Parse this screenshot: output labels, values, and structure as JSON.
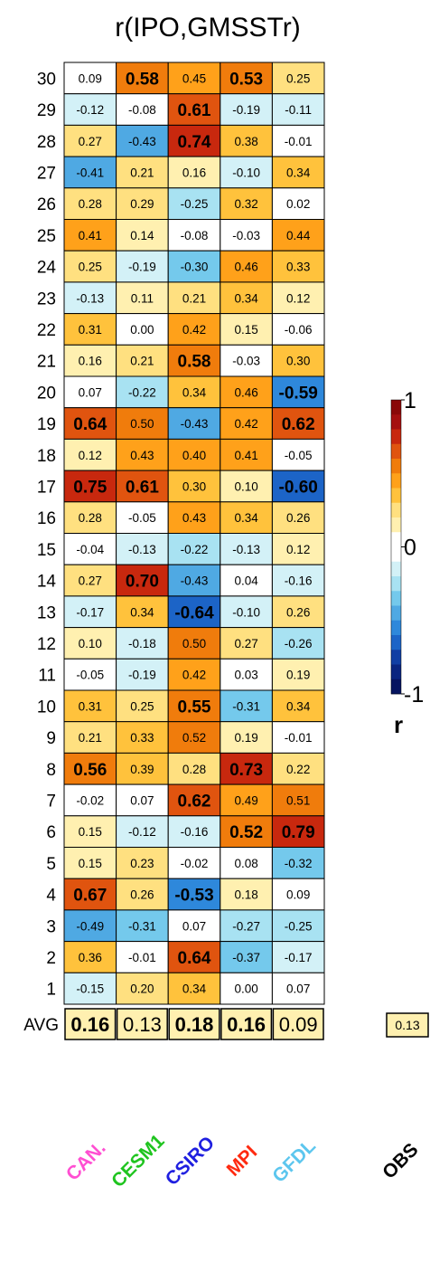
{
  "chart_data": {
    "type": "heatmap",
    "title": "r(IPO,GMSSTr)",
    "columns": [
      {
        "name": "CAN.",
        "color": "#ff4fd2"
      },
      {
        "name": "CESM1",
        "color": "#1fc41f"
      },
      {
        "name": "CSIRO",
        "color": "#1f1fe0"
      },
      {
        "name": "MPI",
        "color": "#ff2a10"
      },
      {
        "name": "GFDL",
        "color": "#5cc6ee"
      }
    ],
    "rows": [
      {
        "label": "30",
        "values": [
          0.09,
          0.58,
          0.45,
          0.53,
          0.25
        ],
        "bold": [
          false,
          true,
          false,
          true,
          false
        ]
      },
      {
        "label": "29",
        "values": [
          -0.12,
          -0.08,
          0.61,
          -0.19,
          -0.11
        ],
        "bold": [
          false,
          false,
          true,
          false,
          false
        ]
      },
      {
        "label": "28",
        "values": [
          0.27,
          -0.43,
          0.74,
          0.38,
          -0.01
        ],
        "bold": [
          false,
          false,
          true,
          false,
          false
        ]
      },
      {
        "label": "27",
        "values": [
          -0.41,
          0.21,
          0.16,
          -0.1,
          0.34
        ],
        "bold": [
          false,
          false,
          false,
          false,
          false
        ]
      },
      {
        "label": "26",
        "values": [
          0.28,
          0.29,
          -0.25,
          0.32,
          0.02
        ],
        "bold": [
          false,
          false,
          false,
          false,
          false
        ]
      },
      {
        "label": "25",
        "values": [
          0.41,
          0.14,
          -0.08,
          -0.03,
          0.44
        ],
        "bold": [
          false,
          false,
          false,
          false,
          false
        ]
      },
      {
        "label": "24",
        "values": [
          0.25,
          -0.19,
          -0.3,
          0.46,
          0.33
        ],
        "bold": [
          false,
          false,
          false,
          false,
          false
        ]
      },
      {
        "label": "23",
        "values": [
          -0.13,
          0.11,
          0.21,
          0.34,
          0.12
        ],
        "bold": [
          false,
          false,
          false,
          false,
          false
        ]
      },
      {
        "label": "22",
        "values": [
          0.31,
          0.0,
          0.42,
          0.15,
          -0.06
        ],
        "bold": [
          false,
          false,
          false,
          false,
          false
        ]
      },
      {
        "label": "21",
        "values": [
          0.16,
          0.21,
          0.58,
          -0.03,
          0.3
        ],
        "bold": [
          false,
          false,
          true,
          false,
          false
        ]
      },
      {
        "label": "20",
        "values": [
          0.07,
          -0.22,
          0.34,
          0.46,
          -0.59
        ],
        "bold": [
          false,
          false,
          false,
          false,
          true
        ]
      },
      {
        "label": "19",
        "values": [
          0.64,
          0.5,
          -0.43,
          0.42,
          0.62
        ],
        "bold": [
          true,
          false,
          false,
          false,
          true
        ]
      },
      {
        "label": "18",
        "values": [
          0.12,
          0.43,
          0.4,
          0.41,
          -0.05
        ],
        "bold": [
          false,
          false,
          false,
          false,
          false
        ]
      },
      {
        "label": "17",
        "values": [
          0.75,
          0.61,
          0.3,
          0.1,
          -0.6
        ],
        "bold": [
          true,
          true,
          false,
          false,
          true
        ]
      },
      {
        "label": "16",
        "values": [
          0.28,
          -0.05,
          0.43,
          0.34,
          0.26
        ],
        "bold": [
          false,
          false,
          false,
          false,
          false
        ]
      },
      {
        "label": "15",
        "values": [
          -0.04,
          -0.13,
          -0.22,
          -0.13,
          0.12
        ],
        "bold": [
          false,
          false,
          false,
          false,
          false
        ]
      },
      {
        "label": "14",
        "values": [
          0.27,
          0.7,
          -0.43,
          0.04,
          -0.16
        ],
        "bold": [
          false,
          true,
          false,
          false,
          false
        ]
      },
      {
        "label": "13",
        "values": [
          -0.17,
          0.34,
          -0.64,
          -0.1,
          0.26
        ],
        "bold": [
          false,
          false,
          true,
          false,
          false
        ]
      },
      {
        "label": "12",
        "values": [
          0.1,
          -0.18,
          0.5,
          0.27,
          -0.26
        ],
        "bold": [
          false,
          false,
          false,
          false,
          false
        ]
      },
      {
        "label": "11",
        "values": [
          -0.05,
          -0.19,
          0.42,
          0.03,
          0.19
        ],
        "bold": [
          false,
          false,
          false,
          false,
          false
        ]
      },
      {
        "label": "10",
        "values": [
          0.31,
          0.25,
          0.55,
          -0.31,
          0.34
        ],
        "bold": [
          false,
          false,
          true,
          false,
          false
        ]
      },
      {
        "label": "9",
        "values": [
          0.21,
          0.33,
          0.52,
          0.19,
          -0.01
        ],
        "bold": [
          false,
          false,
          false,
          false,
          false
        ]
      },
      {
        "label": "8",
        "values": [
          0.56,
          0.39,
          0.28,
          0.73,
          0.22
        ],
        "bold": [
          true,
          false,
          false,
          true,
          false
        ]
      },
      {
        "label": "7",
        "values": [
          -0.02,
          0.07,
          0.62,
          0.49,
          0.51
        ],
        "bold": [
          false,
          false,
          true,
          false,
          false
        ]
      },
      {
        "label": "6",
        "values": [
          0.15,
          -0.12,
          -0.16,
          0.52,
          0.79
        ],
        "bold": [
          false,
          false,
          false,
          true,
          true
        ]
      },
      {
        "label": "5",
        "values": [
          0.15,
          0.23,
          -0.02,
          0.08,
          -0.32
        ],
        "bold": [
          false,
          false,
          false,
          false,
          false
        ]
      },
      {
        "label": "4",
        "values": [
          0.67,
          0.26,
          -0.53,
          0.18,
          0.09
        ],
        "bold": [
          true,
          false,
          true,
          false,
          false
        ]
      },
      {
        "label": "3",
        "values": [
          -0.49,
          -0.31,
          0.07,
          -0.27,
          -0.25
        ],
        "bold": [
          false,
          false,
          false,
          false,
          false
        ]
      },
      {
        "label": "2",
        "values": [
          0.36,
          -0.01,
          0.64,
          -0.37,
          -0.17
        ],
        "bold": [
          false,
          false,
          true,
          false,
          false
        ]
      },
      {
        "label": "1",
        "values": [
          -0.15,
          0.2,
          0.34,
          0.0,
          0.07
        ],
        "bold": [
          false,
          false,
          false,
          false,
          false
        ]
      }
    ],
    "avg": {
      "label": "AVG",
      "values": [
        0.16,
        0.13,
        0.18,
        0.16,
        0.09
      ],
      "bold": [
        true,
        false,
        true,
        true,
        false
      ]
    },
    "obs": {
      "label": "OBS",
      "value": 0.13
    },
    "colorbar": {
      "label": "r",
      "ticks": [
        "1",
        "0",
        "-1"
      ],
      "range": [
        -1,
        1
      ]
    }
  }
}
